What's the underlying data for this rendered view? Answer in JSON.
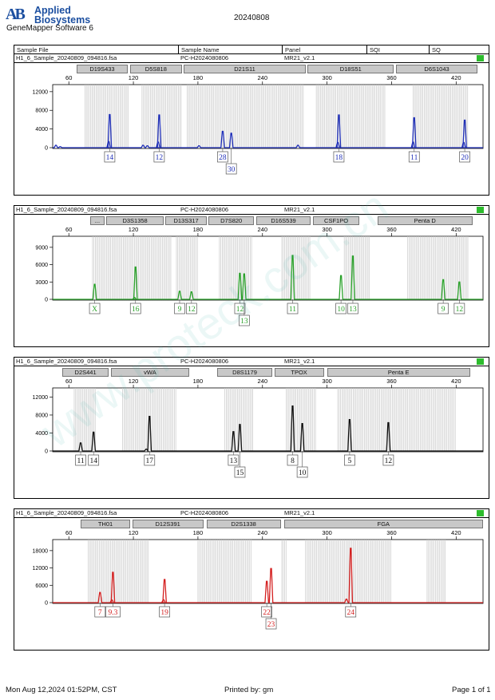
{
  "header": {
    "logo_mark": "AB",
    "logo_line1": "Applied",
    "logo_line2": "Biosystems",
    "app_name": "GeneMapper Software 6",
    "run_date": "20240808"
  },
  "columns": [
    "Sample File",
    "Sample Name",
    "Panel",
    "SQI",
    "SQ"
  ],
  "watermark": "www.proteck.com.cn",
  "footer": {
    "printed_at": "Mon Aug 12,2024 01:52PM, CST",
    "printed_by": "Printed by: gm",
    "page": "Page 1 of 1"
  },
  "colors": {
    "blue": "#1f2fb8",
    "green": "#2aa12a",
    "black": "#111111",
    "red": "#d42020",
    "qc_pass": "#2dbc2d"
  },
  "chart_data": [
    {
      "type": "electropherogram",
      "sample_file": "H1_6_Sample_20240809_094816.fsa",
      "sample_name": "PC-H2024080806",
      "panel": "MR21_v2.1",
      "color": "blue",
      "xlim": [
        45,
        445
      ],
      "x_ticks": [
        60,
        120,
        180,
        240,
        300,
        360,
        420
      ],
      "ylim": [
        0,
        13000
      ],
      "y_ticks": [
        0,
        4000,
        8000,
        12000
      ],
      "loci": [
        {
          "name": "D19S433",
          "start": 67,
          "end": 115
        },
        {
          "name": "D5S818",
          "start": 117,
          "end": 165
        },
        {
          "name": "D21S11",
          "start": 167,
          "end": 280
        },
        {
          "name": "D18S51",
          "start": 282,
          "end": 362
        },
        {
          "name": "D6S1043",
          "start": 364,
          "end": 440
        }
      ],
      "bin_ranges": [
        [
          75,
          116
        ],
        [
          128,
          165
        ],
        [
          170,
          278
        ],
        [
          290,
          355
        ],
        [
          380,
          432
        ]
      ],
      "peaks": [
        {
          "size": 48,
          "height": 500
        },
        {
          "size": 52,
          "height": 200
        },
        {
          "size": 97,
          "height": 1300,
          "label": "14"
        },
        {
          "size": 98,
          "height": 7100
        },
        {
          "size": 129,
          "height": 500
        },
        {
          "size": 133,
          "height": 400
        },
        {
          "size": 143,
          "height": 1200,
          "label": "12"
        },
        {
          "size": 144,
          "height": 7000
        },
        {
          "size": 181,
          "height": 400
        },
        {
          "size": 203,
          "height": 3500,
          "label": "28"
        },
        {
          "size": 211,
          "height": 3100,
          "label": "30"
        },
        {
          "size": 273,
          "height": 500
        },
        {
          "size": 310,
          "height": 1100,
          "label": "18"
        },
        {
          "size": 311,
          "height": 7000
        },
        {
          "size": 380,
          "height": 1200,
          "label": "11"
        },
        {
          "size": 381,
          "height": 6400
        },
        {
          "size": 427,
          "height": 1100,
          "label": "20"
        },
        {
          "size": 428,
          "height": 5900
        }
      ],
      "allele_labels": [
        {
          "text": "14",
          "size": 98,
          "row": 1
        },
        {
          "text": "12",
          "size": 144,
          "row": 1
        },
        {
          "text": "28",
          "size": 203,
          "row": 1
        },
        {
          "text": "30",
          "size": 211,
          "row": 2
        },
        {
          "text": "18",
          "size": 311,
          "row": 1
        },
        {
          "text": "11",
          "size": 381,
          "row": 1
        },
        {
          "text": "20",
          "size": 428,
          "row": 1
        }
      ]
    },
    {
      "type": "electropherogram",
      "sample_file": "H1_6_Sample_20240809_094816.fsa",
      "sample_name": "PC-H2024080806",
      "panel": "MR21_v2.1",
      "color": "green",
      "xlim": [
        45,
        445
      ],
      "x_ticks": [
        60,
        120,
        180,
        240,
        300,
        360,
        420
      ],
      "ylim": [
        0,
        10500
      ],
      "y_ticks": [
        0,
        3000,
        6000,
        9000
      ],
      "loci": [
        {
          "name": "...",
          "start": 80,
          "end": 93
        },
        {
          "name": "D3S1358",
          "start": 95,
          "end": 148
        },
        {
          "name": "D13S317",
          "start": 150,
          "end": 188
        },
        {
          "name": "D7S820",
          "start": 190,
          "end": 232
        },
        {
          "name": "D16S539",
          "start": 234,
          "end": 285
        },
        {
          "name": "CSF1PO",
          "start": 287,
          "end": 330
        },
        {
          "name": "Penta D",
          "start": 347,
          "end": 435
        }
      ],
      "bin_ranges": [
        [
          82,
          155
        ],
        [
          160,
          180
        ],
        [
          200,
          230
        ],
        [
          258,
          285
        ],
        [
          316,
          340
        ],
        [
          375,
          432
        ]
      ],
      "peaks": [
        {
          "size": 84,
          "height": 2600,
          "label": "X"
        },
        {
          "size": 121,
          "height": 300
        },
        {
          "size": 122,
          "height": 5600,
          "label": "16"
        },
        {
          "size": 163,
          "height": 1400,
          "label": "9"
        },
        {
          "size": 174,
          "height": 1300,
          "label": "12"
        },
        {
          "size": 219,
          "height": 4500,
          "label": "12"
        },
        {
          "size": 223,
          "height": 4400,
          "label": "13"
        },
        {
          "size": 268,
          "height": 7600,
          "label": "11"
        },
        {
          "size": 313,
          "height": 4100,
          "label": "10"
        },
        {
          "size": 324,
          "height": 7500,
          "label": "13"
        },
        {
          "size": 408,
          "height": 3400,
          "label": "9"
        },
        {
          "size": 423,
          "height": 3000,
          "label": "12"
        }
      ],
      "allele_labels": [
        {
          "text": "X",
          "size": 84,
          "row": 1
        },
        {
          "text": "16",
          "size": 122,
          "row": 1
        },
        {
          "text": "9",
          "size": 163,
          "row": 1
        },
        {
          "text": "12",
          "size": 174,
          "row": 1
        },
        {
          "text": "12",
          "size": 219,
          "row": 1
        },
        {
          "text": "13",
          "size": 223,
          "row": 2
        },
        {
          "text": "11",
          "size": 268,
          "row": 1
        },
        {
          "text": "10",
          "size": 313,
          "row": 1
        },
        {
          "text": "13",
          "size": 324,
          "row": 1
        },
        {
          "text": "9",
          "size": 408,
          "row": 1
        },
        {
          "text": "12",
          "size": 423,
          "row": 1
        }
      ]
    },
    {
      "type": "electropherogram",
      "sample_file": "H1_6_Sample_20240809_094816.fsa",
      "sample_name": "PC-H2024080806",
      "panel": "MR21_v2.1",
      "color": "black",
      "xlim": [
        45,
        445
      ],
      "x_ticks": [
        60,
        120,
        180,
        240,
        300,
        360,
        420
      ],
      "ylim": [
        0,
        13500
      ],
      "y_ticks": [
        0,
        4000,
        8000,
        12000
      ],
      "loci": [
        {
          "name": "D2S441",
          "start": 54,
          "end": 97
        },
        {
          "name": "vWA",
          "start": 99,
          "end": 172
        },
        {
          "name": "D8S1179",
          "start": 198,
          "end": 249
        },
        {
          "name": "TPOX",
          "start": 251,
          "end": 297
        },
        {
          "name": "Penta E",
          "start": 300,
          "end": 433
        }
      ],
      "bin_ranges": [
        [
          65,
          85
        ],
        [
          110,
          160
        ],
        [
          205,
          232
        ],
        [
          262,
          290
        ],
        [
          310,
          420
        ]
      ],
      "peaks": [
        {
          "size": 71,
          "height": 1800,
          "label": "11"
        },
        {
          "size": 83,
          "height": 4200,
          "label": "14"
        },
        {
          "size": 132,
          "height": 400
        },
        {
          "size": 135,
          "height": 7700,
          "label": "17"
        },
        {
          "size": 213,
          "height": 4300,
          "label": "13"
        },
        {
          "size": 219,
          "height": 5900,
          "label": "15"
        },
        {
          "size": 268,
          "height": 10000,
          "label": "8"
        },
        {
          "size": 277,
          "height": 6100,
          "label": "10"
        },
        {
          "size": 321,
          "height": 7000,
          "label": "5"
        },
        {
          "size": 357,
          "height": 6300,
          "label": "12"
        }
      ],
      "allele_labels": [
        {
          "text": "11",
          "size": 71,
          "row": 1
        },
        {
          "text": "14",
          "size": 83,
          "row": 1
        },
        {
          "text": "17",
          "size": 135,
          "row": 1
        },
        {
          "text": "13",
          "size": 213,
          "row": 1
        },
        {
          "text": "15",
          "size": 219,
          "row": 2
        },
        {
          "text": "8",
          "size": 268,
          "row": 1
        },
        {
          "text": "10",
          "size": 277,
          "row": 2
        },
        {
          "text": "5",
          "size": 321,
          "row": 1
        },
        {
          "text": "12",
          "size": 357,
          "row": 1
        }
      ]
    },
    {
      "type": "electropherogram",
      "sample_file": "H1_6_Sample_20240809_094816.fsa",
      "sample_name": "PC-H2024080806",
      "panel": "MR21_v2.1",
      "color": "red",
      "xlim": [
        45,
        445
      ],
      "x_ticks": [
        60,
        120,
        180,
        240,
        300,
        360,
        420
      ],
      "ylim": [
        0,
        21000
      ],
      "y_ticks": [
        0,
        6000,
        12000,
        18000
      ],
      "loci": [
        {
          "name": "TH01",
          "start": 71,
          "end": 117
        },
        {
          "name": "D12S391",
          "start": 119,
          "end": 185
        },
        {
          "name": "D2S1338",
          "start": 188,
          "end": 257
        },
        {
          "name": "FGA",
          "start": 260,
          "end": 445
        }
      ],
      "bin_ranges": [
        [
          78,
          135
        ],
        [
          180,
          230
        ],
        [
          258,
          262
        ],
        [
          280,
          360
        ],
        [
          393,
          410
        ]
      ],
      "peaks": [
        {
          "size": 89,
          "height": 3500,
          "label": "7"
        },
        {
          "size": 100,
          "height": 900
        },
        {
          "size": 101,
          "height": 10500,
          "label": "9.3"
        },
        {
          "size": 148,
          "height": 1000
        },
        {
          "size": 149,
          "height": 8000,
          "label": "19"
        },
        {
          "size": 244,
          "height": 7400,
          "label": "22"
        },
        {
          "size": 248,
          "height": 11800,
          "label": "23"
        },
        {
          "size": 318,
          "height": 1200
        },
        {
          "size": 322,
          "height": 18800,
          "label": "24"
        }
      ],
      "allele_labels": [
        {
          "text": "7",
          "size": 89,
          "row": 1
        },
        {
          "text": "9.3",
          "size": 101,
          "row": 1
        },
        {
          "text": "19",
          "size": 149,
          "row": 1
        },
        {
          "text": "22",
          "size": 244,
          "row": 1
        },
        {
          "text": "23",
          "size": 248,
          "row": 2
        },
        {
          "text": "24",
          "size": 322,
          "row": 1
        }
      ]
    }
  ]
}
